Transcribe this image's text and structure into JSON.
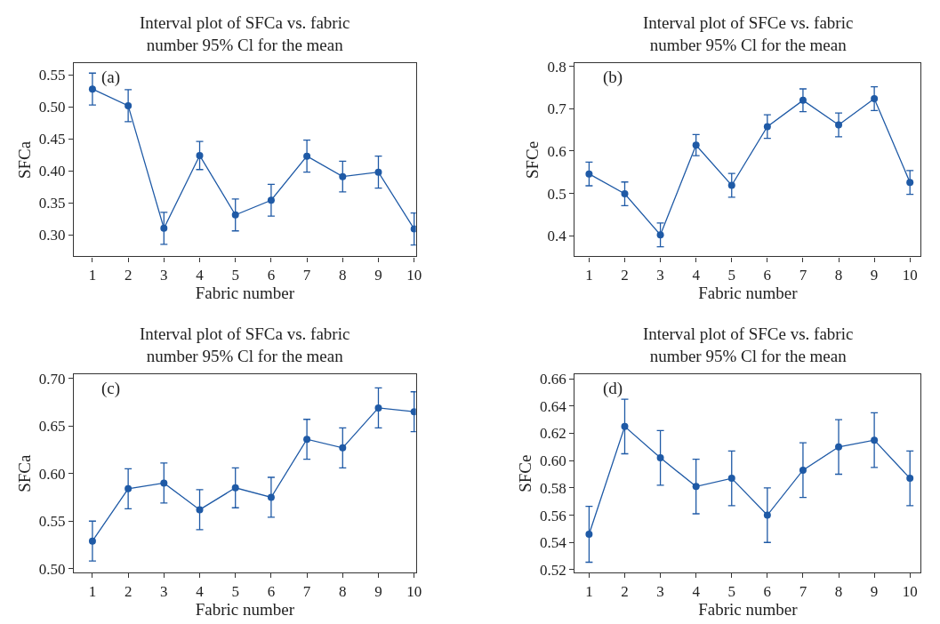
{
  "chart_data": [
    {
      "type": "line",
      "title": "Interval plot of SFCa vs. fabric number 95% Cl for the mean",
      "xlabel": "Fabric number",
      "ylabel": "SFCa",
      "annotations": [
        "(a)"
      ],
      "marker": "circle",
      "line_style": "solid",
      "x": [
        1,
        2,
        3,
        4,
        5,
        6,
        7,
        8,
        9,
        10
      ],
      "series": [
        {
          "color": "#1f5aa6",
          "values": [
            0.528,
            0.502,
            0.31,
            0.424,
            0.331,
            0.354,
            0.423,
            0.391,
            0.398,
            0.309
          ],
          "errors": [
            0.025,
            0.025,
            0.025,
            0.022,
            0.025,
            0.025,
            0.025,
            0.024,
            0.025,
            0.025
          ]
        }
      ],
      "xlim": [
        0.48,
        10.05
      ],
      "xticks": [
        1,
        2,
        3,
        4,
        5,
        6,
        7,
        8,
        9,
        10
      ],
      "ylim": [
        0.266,
        0.568
      ],
      "yticks": [
        {
          "value": 0.3,
          "label": "0.30"
        },
        0.35,
        {
          "value": 0.4,
          "label": "0.40"
        },
        0.45,
        {
          "value": 0.5,
          "label": "0.50"
        },
        0.55
      ]
    },
    {
      "type": "line",
      "title": "Interval plot of SFCe vs. fabric number 95% Cl for the mean",
      "xlabel": "Fabric number",
      "ylabel": "SFCe",
      "annotations": [
        "(b)"
      ],
      "marker": "circle",
      "line_style": "solid",
      "x": [
        1,
        2,
        3,
        4,
        5,
        6,
        7,
        8,
        9,
        10
      ],
      "series": [
        {
          "color": "#1f5aa6",
          "values": [
            0.546,
            0.499,
            0.402,
            0.614,
            0.519,
            0.658,
            0.72,
            0.662,
            0.724,
            0.526
          ],
          "errors": [
            0.028,
            0.028,
            0.028,
            0.025,
            0.028,
            0.028,
            0.027,
            0.028,
            0.028,
            0.028
          ]
        }
      ],
      "xlim": [
        0.6,
        10.3
      ],
      "xticks": [
        1,
        2,
        3,
        4,
        5,
        6,
        7,
        8,
        9,
        10
      ],
      "ylim": [
        0.351,
        0.807
      ],
      "yticks": [
        0.4,
        0.5,
        0.6,
        0.7,
        0.8
      ]
    },
    {
      "type": "line",
      "title": "Interval plot of SFCa vs. fabric number 95% Cl for the mean",
      "xlabel": "Fabric number",
      "ylabel": "SFCa",
      "annotations": [
        "(c)"
      ],
      "marker": "circle",
      "line_style": "solid",
      "x": [
        1,
        2,
        3,
        4,
        5,
        6,
        7,
        8,
        9,
        10
      ],
      "series": [
        {
          "color": "#1f5aa6",
          "values": [
            0.529,
            0.584,
            0.59,
            0.562,
            0.585,
            0.575,
            0.636,
            0.627,
            0.669,
            0.665
          ],
          "errors": [
            0.021,
            0.021,
            0.021,
            0.021,
            0.021,
            0.021,
            0.021,
            0.021,
            0.021,
            0.021
          ]
        }
      ],
      "xlim": [
        0.48,
        10.05
      ],
      "xticks": [
        1,
        2,
        3,
        4,
        5,
        6,
        7,
        8,
        9,
        10
      ],
      "ylim": [
        0.496,
        0.704
      ],
      "yticks": [
        {
          "value": 0.5,
          "label": "0.50"
        },
        0.55,
        {
          "value": 0.6,
          "label": "0.60"
        },
        0.65,
        {
          "value": 0.7,
          "label": "0.70"
        }
      ]
    },
    {
      "type": "line",
      "title": "Interval plot of SFCe vs. fabric number 95% Cl for the mean",
      "xlabel": "Fabric number",
      "ylabel": "SFCe",
      "annotations": [
        "(d)"
      ],
      "marker": "circle",
      "line_style": "solid",
      "x": [
        1,
        2,
        3,
        4,
        5,
        6,
        7,
        8,
        9,
        10
      ],
      "series": [
        {
          "color": "#1f5aa6",
          "values": [
            0.546,
            0.625,
            0.602,
            0.581,
            0.587,
            0.56,
            0.593,
            0.61,
            0.615,
            0.587
          ],
          "errors": [
            0.0205,
            0.02,
            0.02,
            0.02,
            0.02,
            0.02,
            0.02,
            0.02,
            0.02,
            0.02
          ]
        }
      ],
      "xlim": [
        0.6,
        10.3
      ],
      "xticks": [
        1,
        2,
        3,
        4,
        5,
        6,
        7,
        8,
        9,
        10
      ],
      "ylim": [
        0.518,
        0.663
      ],
      "yticks": [
        0.52,
        0.54,
        0.56,
        0.58,
        {
          "value": 0.6,
          "label": "0.60"
        },
        0.62,
        0.64,
        0.66
      ]
    }
  ]
}
